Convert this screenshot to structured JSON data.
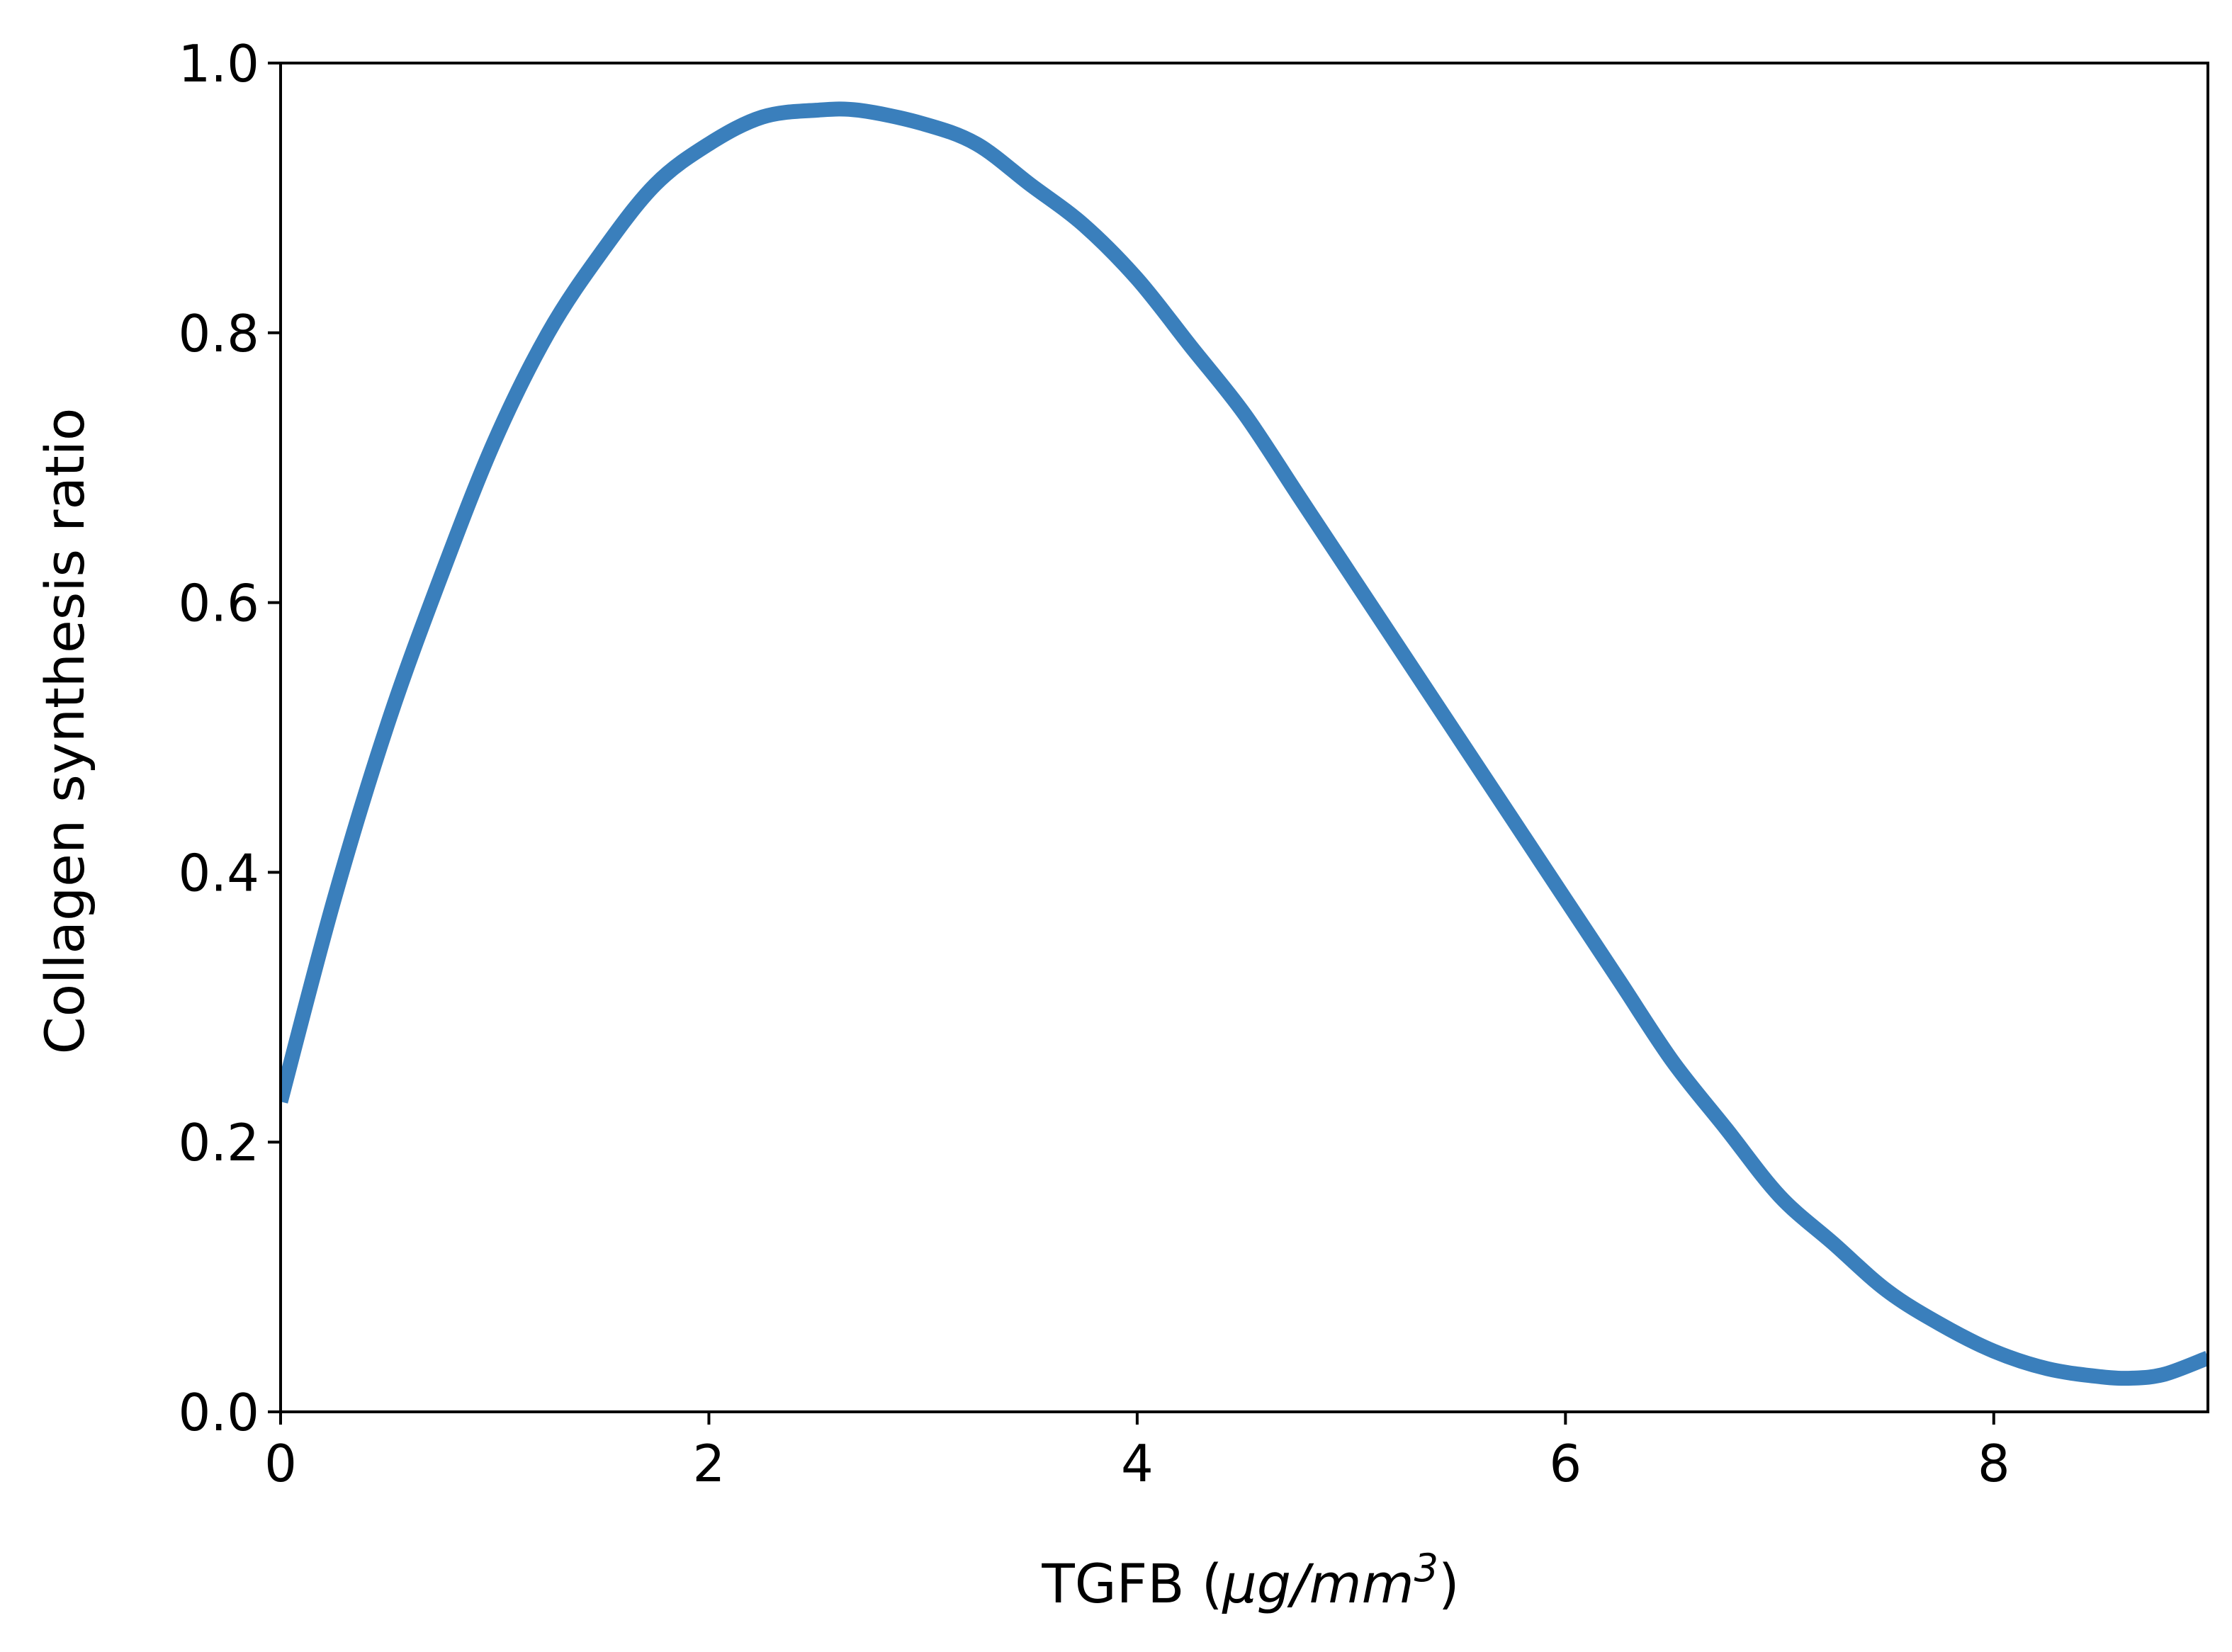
{
  "chart_data": {
    "type": "line",
    "title": "",
    "xlabel": {
      "text": "TGFB (",
      "unit_main": "μg/mm",
      "unit_sup": "3",
      "close": ")"
    },
    "ylabel": "Collagen synthesis ratio",
    "xlim": [
      0,
      9
    ],
    "ylim": [
      0,
      1
    ],
    "xticks": [
      0,
      2,
      4,
      6,
      8
    ],
    "yticks": [
      0.0,
      0.2,
      0.4,
      0.6,
      0.8,
      1.0
    ],
    "xtick_labels": [
      "0",
      "2",
      "4",
      "6",
      "8"
    ],
    "ytick_labels": [
      "0.0",
      "0.2",
      "0.4",
      "0.6",
      "0.8",
      "1.0"
    ],
    "grid": false,
    "legend": "none",
    "line_color": "#3a7fbc",
    "series": [
      {
        "x": [
          0.0,
          0.25,
          0.5,
          0.75,
          1.0,
          1.25,
          1.5,
          1.75,
          2.0,
          2.25,
          2.5,
          2.7,
          3.0,
          3.25,
          3.5,
          3.75,
          4.0,
          4.25,
          4.5,
          4.75,
          5.0,
          5.25,
          5.5,
          5.75,
          6.0,
          6.25,
          6.5,
          6.75,
          7.0,
          7.25,
          7.5,
          7.75,
          8.0,
          8.25,
          8.5,
          8.65,
          8.8,
          9.0
        ],
        "y": [
          0.23,
          0.38,
          0.51,
          0.62,
          0.72,
          0.8,
          0.86,
          0.91,
          0.94,
          0.96,
          0.965,
          0.965,
          0.955,
          0.94,
          0.91,
          0.88,
          0.84,
          0.79,
          0.74,
          0.68,
          0.62,
          0.56,
          0.5,
          0.44,
          0.38,
          0.32,
          0.26,
          0.21,
          0.16,
          0.125,
          0.09,
          0.065,
          0.045,
          0.032,
          0.026,
          0.025,
          0.028,
          0.04
        ]
      }
    ]
  }
}
